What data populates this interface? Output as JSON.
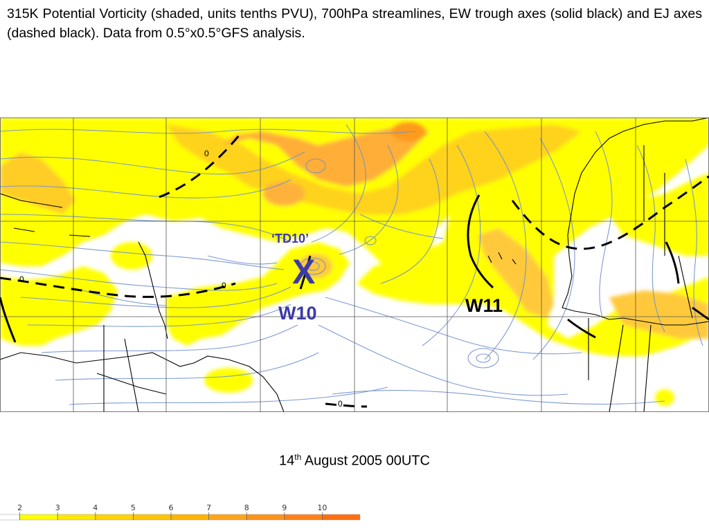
{
  "caption": "315K Potential Vorticity (shaded, units tenths PVU), 700hPa streamlines, EW trough axes (solid black) and EJ axes (dashed black). Data from 0.5°x0.5°GFS analysis.",
  "map": {
    "labels": {
      "td": "‘TD10’",
      "marker": "X",
      "wave_w10": "W10",
      "wave_w11": "W11",
      "zero_contour": "0"
    },
    "colors": {
      "pv_light": "#ffff00",
      "pv_mid": "#ffd21a",
      "pv_orange": "#ffb23a",
      "pv_deep": "#ff9a1a",
      "streamline": "#6f8fd0",
      "label_blue": "#3a3aa8"
    }
  },
  "date": {
    "day": "14",
    "suffix": "th",
    "rest": "August 2005 00UTC"
  },
  "colorbar": {
    "ticks": [
      "2",
      "3",
      "4",
      "5",
      "6",
      "7",
      "8",
      "9",
      "10"
    ],
    "colors": [
      "#ffffff",
      "#ffff00",
      "#ffe800",
      "#ffd400",
      "#ffc400",
      "#ffb400",
      "#ffa41a",
      "#ff921a",
      "#ff801a",
      "#ff6e10"
    ]
  }
}
